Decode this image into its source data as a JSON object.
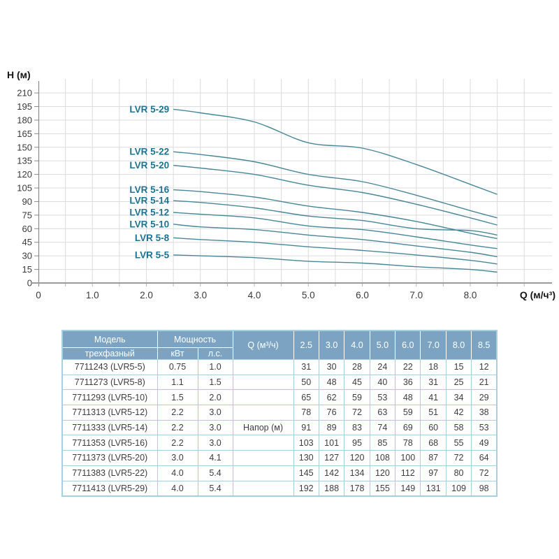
{
  "chart_data": {
    "type": "line",
    "title": "",
    "xlabel": "Q (м/ч³)",
    "ylabel": "H (м)",
    "x": [
      2.5,
      3.0,
      4.0,
      5.0,
      6.0,
      7.0,
      8.0,
      8.5
    ],
    "series": [
      {
        "name": "LVR 5-29",
        "values": [
          192,
          188,
          178,
          155,
          149,
          131,
          109,
          98
        ]
      },
      {
        "name": "LVR 5-22",
        "values": [
          145,
          142,
          134,
          120,
          112,
          97,
          80,
          72
        ]
      },
      {
        "name": "LVR 5-20",
        "values": [
          130,
          127,
          120,
          108,
          100,
          87,
          72,
          64
        ]
      },
      {
        "name": "LVR 5-16",
        "values": [
          103,
          101,
          95,
          85,
          78,
          68,
          55,
          49
        ]
      },
      {
        "name": "LVR 5-14",
        "values": [
          91,
          89,
          83,
          74,
          69,
          60,
          58,
          53
        ]
      },
      {
        "name": "LVR 5-12",
        "values": [
          78,
          76,
          72,
          63,
          59,
          51,
          42,
          38
        ]
      },
      {
        "name": "LVR 5-10",
        "values": [
          65,
          62,
          59,
          53,
          48,
          41,
          34,
          29
        ]
      },
      {
        "name": "LVR 5-8",
        "values": [
          50,
          48,
          45,
          40,
          36,
          31,
          25,
          21
        ]
      },
      {
        "name": "LVR 5-5",
        "values": [
          31,
          30,
          28,
          24,
          22,
          18,
          15,
          12
        ]
      }
    ],
    "ylim": [
      0,
      210
    ],
    "xlim": [
      0,
      9.5
    ],
    "y_ticks": [
      0,
      15,
      30,
      45,
      60,
      75,
      90,
      105,
      120,
      135,
      150,
      165,
      180,
      195,
      210
    ],
    "x_tick_values": [
      0,
      1,
      2,
      3,
      4,
      5,
      6,
      7,
      8
    ],
    "x_tick_labels": [
      "0",
      "1.0",
      "2.0",
      "3.0",
      "4.0",
      "5.0",
      "6.0",
      "7.0",
      "8.0"
    ],
    "grid": true,
    "legend_position": "label-left-of-curve-start",
    "colors": {
      "curve": "#478799",
      "curve_label": "#1D7391",
      "grid": "#DCDCDC",
      "axis": "#9B9B9B",
      "tick_text": "#3A3A3A",
      "title_text": "#151515"
    }
  },
  "table": {
    "header": {
      "model_title": "Модель",
      "model_subtitle": "трехфазный",
      "power_title": "Мощность",
      "power_kw": "кВт",
      "power_hp": "л.с.",
      "q_title": "Q (м³/ч)",
      "q_values": [
        "2.5",
        "3.0",
        "4.0",
        "5.0",
        "6.0",
        "7.0",
        "8.0",
        "8.5"
      ]
    },
    "napor_label": "Напор (м)",
    "napor_row_index": 4,
    "rows": [
      {
        "model": "7711243 (LVR5-5)",
        "kw": "0.75",
        "hp": "1.0",
        "values": [
          31,
          30,
          28,
          24,
          22,
          18,
          15,
          12
        ]
      },
      {
        "model": "7711273 (LVR5-8)",
        "kw": "1.1",
        "hp": "1.5",
        "values": [
          50,
          48,
          45,
          40,
          36,
          31,
          25,
          21
        ]
      },
      {
        "model": "7711293 (LVR5-10)",
        "kw": "1.5",
        "hp": "2.0",
        "values": [
          65,
          62,
          59,
          53,
          48,
          41,
          34,
          29
        ]
      },
      {
        "model": "7711313 (LVR5-12)",
        "kw": "2.2",
        "hp": "3.0",
        "values": [
          78,
          76,
          72,
          63,
          59,
          51,
          42,
          38
        ]
      },
      {
        "model": "7711333 (LVR5-14)",
        "kw": "2.2",
        "hp": "3.0",
        "values": [
          91,
          89,
          83,
          74,
          69,
          60,
          58,
          53
        ]
      },
      {
        "model": "7711353 (LVR5-16)",
        "kw": "2.2",
        "hp": "3.0",
        "values": [
          103,
          101,
          95,
          85,
          78,
          68,
          55,
          49
        ]
      },
      {
        "model": "7711373 (LVR5-20)",
        "kw": "3.0",
        "hp": "4.1",
        "values": [
          130,
          127,
          120,
          108,
          100,
          87,
          72,
          64
        ]
      },
      {
        "model": "7711383 (LVR5-22)",
        "kw": "4.0",
        "hp": "5.4",
        "values": [
          145,
          142,
          134,
          120,
          112,
          97,
          80,
          72
        ]
      },
      {
        "model": "7711413 (LVR5-29)",
        "kw": "4.0",
        "hp": "5.4",
        "values": [
          192,
          188,
          178,
          155,
          149,
          131,
          109,
          98
        ]
      }
    ],
    "colors": {
      "header_bg": "#7CA4C2",
      "header_text": "#FFFFFF",
      "border": "#A9CFDE",
      "body_text": "#3D3D3D"
    }
  }
}
